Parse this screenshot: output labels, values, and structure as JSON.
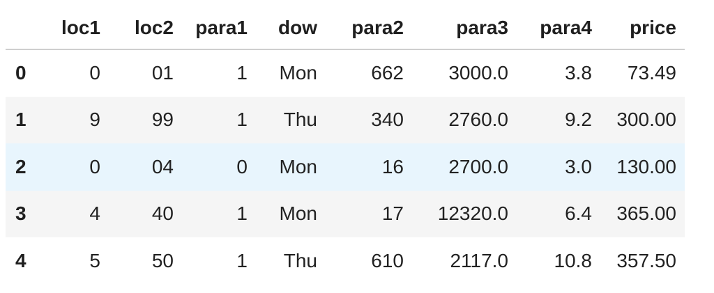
{
  "table": {
    "index_header": "",
    "columns": [
      "loc1",
      "loc2",
      "para1",
      "dow",
      "para2",
      "para3",
      "para4",
      "price"
    ],
    "rows": [
      {
        "index": "0",
        "cells": [
          "0",
          "01",
          "1",
          "Mon",
          "662",
          "3000.0",
          "3.8",
          "73.49"
        ]
      },
      {
        "index": "1",
        "cells": [
          "9",
          "99",
          "1",
          "Thu",
          "340",
          "2760.0",
          "9.2",
          "300.00"
        ]
      },
      {
        "index": "2",
        "cells": [
          "0",
          "04",
          "0",
          "Mon",
          "16",
          "2700.0",
          "3.0",
          "130.00"
        ]
      },
      {
        "index": "3",
        "cells": [
          "4",
          "40",
          "1",
          "Mon",
          "17",
          "12320.0",
          "6.4",
          "365.00"
        ]
      },
      {
        "index": "4",
        "cells": [
          "5",
          "50",
          "1",
          "Thu",
          "610",
          "2117.0",
          "10.8",
          "357.50"
        ]
      }
    ],
    "hovered_row_index": 2,
    "colors": {
      "stripe": "#f5f5f5",
      "hover": "#e8f5fd",
      "header_rule": "#cfcfcf",
      "text": "#1f1f1f"
    }
  }
}
